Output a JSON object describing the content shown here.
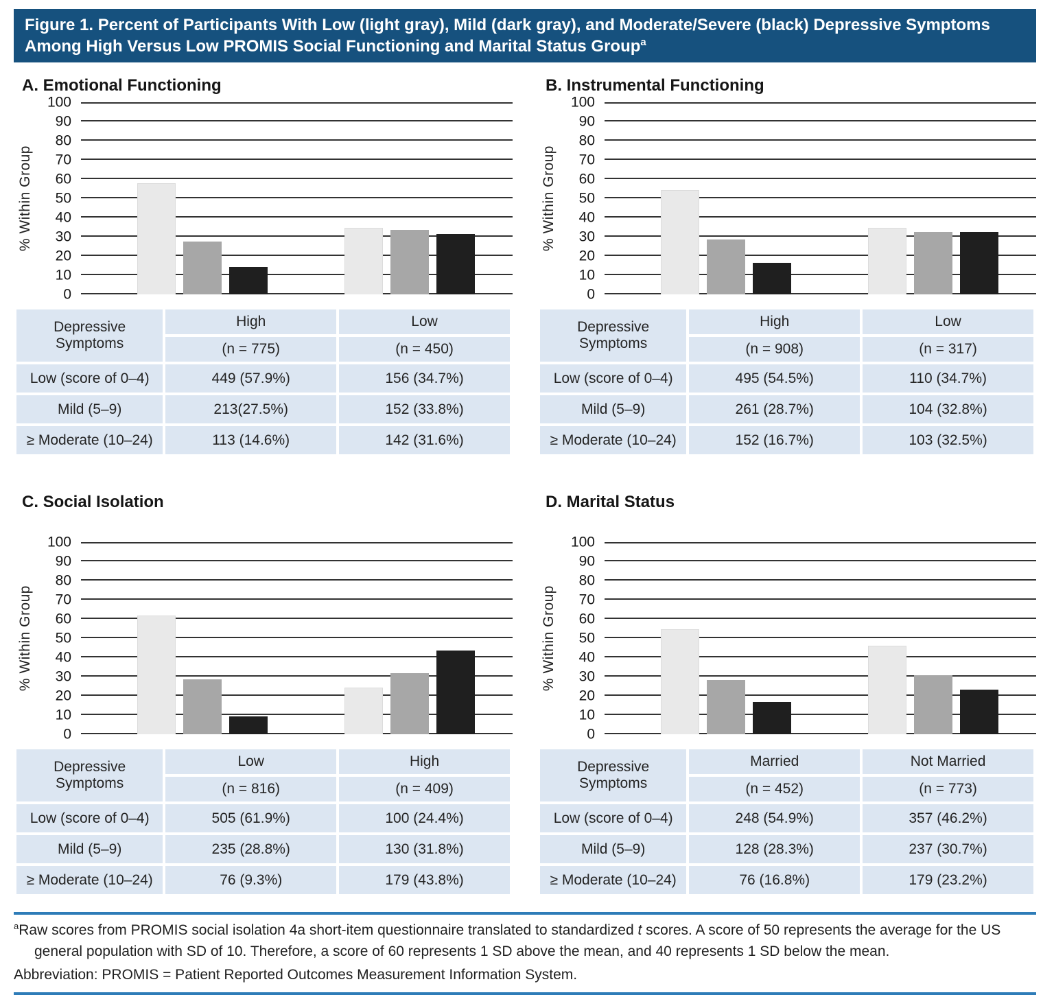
{
  "title": {
    "line1": "Figure 1. Percent of Participants With Low (light gray), Mild (dark gray), and Moderate/Severe (black) Depressive Symptoms",
    "line2": "Among High Versus Low PROMIS Social Functioning and Marital Status Group",
    "superscript": "a"
  },
  "y_axis": {
    "label": "% Within Group",
    "ticks": [
      100,
      90,
      80,
      70,
      60,
      50,
      40,
      30,
      20,
      10,
      0
    ]
  },
  "colors": {
    "title_bar_blue": "#16517e",
    "rule_blue": "#2e7cb8",
    "table_cell_blue": "#dce6f2",
    "bar_light_gray": "#e9e9e9",
    "bar_dark_gray": "#a7a7a7",
    "bar_black": "#1f1f1f"
  },
  "panels": [
    {
      "id": "A",
      "heading": "A. Emotional Functioning",
      "groups": [
        {
          "name": "High",
          "n_label": "(n = 775)",
          "values": [
            57.9,
            27.5,
            14.6
          ]
        },
        {
          "name": "Low",
          "n_label": "(n = 450)",
          "values": [
            34.7,
            33.8,
            31.6
          ]
        }
      ],
      "table": {
        "row_header": "Depressive Symptoms",
        "rows": [
          {
            "label": "Low (score of 0–4)",
            "cells": [
              "449 (57.9%)",
              "156 (34.7%)"
            ]
          },
          {
            "label": "Mild (5–9)",
            "cells": [
              "213(27.5%)",
              "152 (33.8%)"
            ]
          },
          {
            "label": "≥ Moderate (10–24)",
            "cells": [
              "113 (14.6%)",
              "142 (31.6%)"
            ]
          }
        ]
      }
    },
    {
      "id": "B",
      "heading": "B. Instrumental Functioning",
      "groups": [
        {
          "name": "High",
          "n_label": "(n = 908)",
          "values": [
            54.5,
            28.7,
            16.7
          ]
        },
        {
          "name": "Low",
          "n_label": "(n = 317)",
          "values": [
            34.7,
            32.8,
            32.5
          ]
        }
      ],
      "table": {
        "row_header": "Depressive Symptoms",
        "rows": [
          {
            "label": "Low (score of 0–4)",
            "cells": [
              "495 (54.5%)",
              "110 (34.7%)"
            ]
          },
          {
            "label": "Mild (5–9)",
            "cells": [
              "261 (28.7%)",
              "104 (32.8%)"
            ]
          },
          {
            "label": "≥ Moderate (10–24)",
            "cells": [
              "152 (16.7%)",
              "103 (32.5%)"
            ]
          }
        ]
      }
    },
    {
      "id": "C",
      "heading": "C. Social Isolation",
      "groups": [
        {
          "name": "Low",
          "n_label": "(n = 816)",
          "values": [
            61.9,
            28.8,
            9.3
          ]
        },
        {
          "name": "High",
          "n_label": "(n = 409)",
          "values": [
            24.4,
            31.8,
            43.8
          ]
        }
      ],
      "table": {
        "row_header": "Depressive Symptoms",
        "rows": [
          {
            "label": "Low (score of 0–4)",
            "cells": [
              "505 (61.9%)",
              "100 (24.4%)"
            ]
          },
          {
            "label": "Mild (5–9)",
            "cells": [
              "235 (28.8%)",
              "130 (31.8%)"
            ]
          },
          {
            "label": "≥ Moderate (10–24)",
            "cells": [
              "76 (9.3%)",
              "179 (43.8%)"
            ]
          }
        ]
      }
    },
    {
      "id": "D",
      "heading": "D. Marital Status",
      "groups": [
        {
          "name": "Married",
          "n_label": "(n = 452)",
          "values": [
            54.9,
            28.3,
            16.8
          ]
        },
        {
          "name": "Not Married",
          "n_label": "(n = 773)",
          "values": [
            46.2,
            30.7,
            23.2
          ]
        }
      ],
      "table": {
        "row_header": "Depressive Symptoms",
        "rows": [
          {
            "label": "Low (score of 0–4)",
            "cells": [
              "248 (54.9%)",
              "357 (46.2%)"
            ]
          },
          {
            "label": "Mild (5–9)",
            "cells": [
              "128 (28.3%)",
              "237 (30.7%)"
            ]
          },
          {
            "label": "≥ Moderate (10–24)",
            "cells": [
              "76 (16.8%)",
              "179 (23.2%)"
            ]
          }
        ]
      }
    }
  ],
  "footnote": {
    "marker": "a",
    "seg1": "Raw scores from PROMIS social isolation 4a short-item questionnaire translated to standardized ",
    "t_italic": "t",
    "seg2": " scores. A score of 50 represents the average for the US general population with SD of 10. Therefore, a score of 60 represents 1 SD above the mean, and 40 represents 1 SD below the mean.",
    "abbreviation": "Abbreviation: PROMIS = Patient Reported Outcomes Measurement Information System."
  },
  "chart_data": [
    {
      "type": "bar",
      "title": "A. Emotional Functioning",
      "xlabel": "",
      "ylabel": "% Within Group",
      "ylim": [
        0,
        100
      ],
      "grid": true,
      "categories": [
        "High (n = 775)",
        "Low (n = 450)"
      ],
      "series": [
        {
          "name": "Low (score of 0–4) — light gray",
          "values": [
            57.9,
            34.7
          ],
          "counts": [
            449,
            156
          ]
        },
        {
          "name": "Mild (5–9) — dark gray",
          "values": [
            27.5,
            33.8
          ],
          "counts": [
            213,
            152
          ]
        },
        {
          "name": "≥ Moderate (10–24) — black",
          "values": [
            14.6,
            31.6
          ],
          "counts": [
            113,
            142
          ]
        }
      ]
    },
    {
      "type": "bar",
      "title": "B. Instrumental Functioning",
      "xlabel": "",
      "ylabel": "% Within Group",
      "ylim": [
        0,
        100
      ],
      "grid": true,
      "categories": [
        "High (n = 908)",
        "Low (n = 317)"
      ],
      "series": [
        {
          "name": "Low (score of 0–4) — light gray",
          "values": [
            54.5,
            34.7
          ],
          "counts": [
            495,
            110
          ]
        },
        {
          "name": "Mild (5–9) — dark gray",
          "values": [
            28.7,
            32.8
          ],
          "counts": [
            261,
            104
          ]
        },
        {
          "name": "≥ Moderate (10–24) — black",
          "values": [
            16.7,
            32.5
          ],
          "counts": [
            152,
            103
          ]
        }
      ]
    },
    {
      "type": "bar",
      "title": "C. Social Isolation",
      "xlabel": "",
      "ylabel": "% Within Group",
      "ylim": [
        0,
        100
      ],
      "grid": true,
      "categories": [
        "Low (n = 816)",
        "High (n = 409)"
      ],
      "series": [
        {
          "name": "Low (score of 0–4) — light gray",
          "values": [
            61.9,
            24.4
          ],
          "counts": [
            505,
            100
          ]
        },
        {
          "name": "Mild (5–9) — dark gray",
          "values": [
            28.8,
            31.8
          ],
          "counts": [
            235,
            130
          ]
        },
        {
          "name": "≥ Moderate (10–24) — black",
          "values": [
            9.3,
            43.8
          ],
          "counts": [
            76,
            179
          ]
        }
      ]
    },
    {
      "type": "bar",
      "title": "D. Marital Status",
      "xlabel": "",
      "ylabel": "% Within Group",
      "ylim": [
        0,
        100
      ],
      "grid": true,
      "categories": [
        "Married (n = 452)",
        "Not Married (n = 773)"
      ],
      "series": [
        {
          "name": "Low (score of 0–4) — light gray",
          "values": [
            54.9,
            46.2
          ],
          "counts": [
            248,
            357
          ]
        },
        {
          "name": "Mild (5–9) — dark gray",
          "values": [
            28.3,
            30.7
          ],
          "counts": [
            128,
            237
          ]
        },
        {
          "name": "≥ Moderate (10–24) — black",
          "values": [
            16.8,
            23.2
          ],
          "counts": [
            76,
            179
          ]
        }
      ]
    }
  ]
}
